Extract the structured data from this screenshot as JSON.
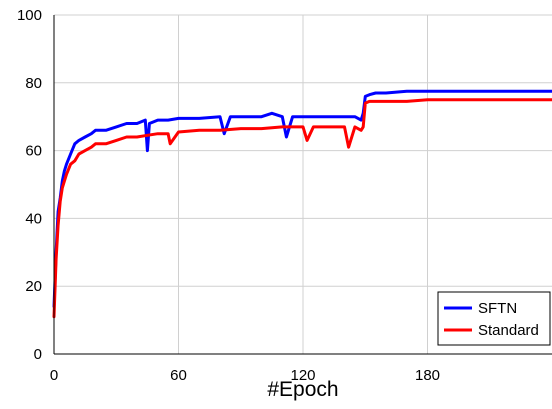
{
  "chart_data": {
    "type": "line",
    "title": "",
    "xlabel": "#Epoch",
    "ylabel": "",
    "xlim": [
      0,
      240
    ],
    "ylim": [
      0,
      100
    ],
    "xticks": [
      0,
      60,
      120,
      180
    ],
    "yticks": [
      0,
      20,
      40,
      60,
      80,
      100
    ],
    "grid": true,
    "legend_position": "bottom-right",
    "series": [
      {
        "name": "SFTN",
        "color": "#0000ff",
        "x": [
          0,
          1,
          2,
          3,
          4,
          5,
          6,
          8,
          10,
          12,
          15,
          18,
          20,
          25,
          30,
          35,
          40,
          44,
          45,
          46,
          50,
          55,
          60,
          70,
          80,
          82,
          85,
          90,
          100,
          105,
          110,
          112,
          115,
          120,
          125,
          130,
          135,
          140,
          145,
          148,
          149,
          150,
          152,
          155,
          160,
          170,
          180,
          190,
          200,
          210,
          220,
          230,
          240
        ],
        "values": [
          14,
          30,
          42,
          46,
          51,
          54,
          56,
          59,
          62,
          63,
          64,
          65,
          66,
          66,
          67,
          68,
          68,
          69,
          60,
          68,
          69,
          69,
          69.5,
          69.5,
          70,
          65,
          70,
          70,
          70,
          71,
          70,
          64,
          70,
          70,
          70,
          70,
          70,
          70,
          70,
          69,
          71,
          76,
          76.5,
          77,
          77,
          77.5,
          77.5,
          77.5,
          77.5,
          77.5,
          77.5,
          77.5,
          77.5
        ]
      },
      {
        "name": "Standard",
        "color": "#ff0000",
        "x": [
          0,
          1,
          2,
          3,
          4,
          5,
          6,
          8,
          10,
          12,
          15,
          18,
          20,
          25,
          30,
          35,
          40,
          45,
          50,
          55,
          56,
          60,
          70,
          80,
          90,
          100,
          110,
          120,
          122,
          125,
          130,
          135,
          140,
          142,
          145,
          148,
          149,
          150,
          152,
          155,
          160,
          170,
          180,
          190,
          200,
          210,
          220,
          230,
          240
        ],
        "values": [
          11,
          28,
          38,
          45,
          49,
          51,
          53,
          56,
          57,
          59,
          60,
          61,
          62,
          62,
          63,
          64,
          64,
          64.5,
          65,
          65,
          62,
          65.5,
          66,
          66,
          66.5,
          66.5,
          67,
          67,
          63,
          67,
          67,
          67,
          67,
          61,
          67,
          66,
          67,
          74,
          74.5,
          74.5,
          74.5,
          74.5,
          75,
          75,
          75,
          75,
          75,
          75,
          75
        ]
      }
    ]
  }
}
